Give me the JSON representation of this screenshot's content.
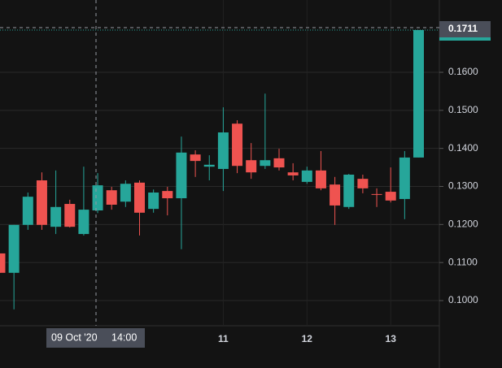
{
  "chart_data": {
    "type": "candlestick",
    "categories": [
      null,
      null,
      null,
      null,
      null,
      null,
      null,
      null,
      null,
      null,
      null,
      null,
      null,
      null,
      null,
      null,
      "11",
      null,
      null,
      null,
      null,
      null,
      "12",
      null,
      null,
      null,
      null,
      null,
      "13",
      null,
      null
    ],
    "open": [
      0.1124,
      0.1073,
      0.1199,
      0.1316,
      0.1194,
      0.1254,
      0.1175,
      0.1237,
      0.129,
      0.126,
      0.131,
      0.1241,
      0.1288,
      0.1269,
      0.1384,
      0.1352,
      0.1346,
      0.1465,
      0.1369,
      0.1354,
      0.1374,
      0.1337,
      0.1312,
      0.1342,
      0.1305,
      0.1246,
      0.132,
      0.128,
      0.1286,
      0.1267,
      0.1376
    ],
    "high": [
      0.1124,
      0.1199,
      0.1284,
      0.1337,
      0.1342,
      0.1265,
      0.1352,
      0.1335,
      0.1299,
      0.1316,
      0.1316,
      0.1292,
      0.1299,
      0.1431,
      0.1395,
      0.1382,
      0.1508,
      0.1474,
      0.1414,
      0.1544,
      0.1399,
      0.1361,
      0.1352,
      0.1393,
      0.1325,
      0.1333,
      0.1331,
      0.1295,
      0.135,
      0.1393,
      0.1711
    ],
    "low": [
      0.1073,
      0.0977,
      0.1186,
      0.1186,
      0.1175,
      0.1192,
      0.1171,
      0.123,
      0.1239,
      0.1246,
      0.1171,
      0.1231,
      0.1224,
      0.1135,
      0.1325,
      0.1316,
      0.1288,
      0.1335,
      0.132,
      0.1346,
      0.1342,
      0.1316,
      0.1307,
      0.129,
      0.1199,
      0.1241,
      0.1282,
      0.1246,
      0.1258,
      0.1214,
      0.1376
    ],
    "close": [
      0.1073,
      0.1199,
      0.1273,
      0.1199,
      0.1246,
      0.1194,
      0.1239,
      0.1303,
      0.1252,
      0.1307,
      0.1231,
      0.1284,
      0.1269,
      0.1389,
      0.1367,
      0.1357,
      0.1442,
      0.1354,
      0.1337,
      0.1369,
      0.135,
      0.1329,
      0.1342,
      0.1295,
      0.125,
      0.1331,
      0.1295,
      0.1278,
      0.1263,
      0.1376,
      0.1711
    ],
    "up_color": "#26a69a",
    "down_color": "#ef5350",
    "ylim": [
      0.0936,
      0.179
    ],
    "yticks": [
      {
        "value": 0.1,
        "label": "0.1000"
      },
      {
        "value": 0.11,
        "label": "0.1100"
      },
      {
        "value": 0.12,
        "label": "0.1200"
      },
      {
        "value": 0.13,
        "label": "0.1300"
      },
      {
        "value": 0.14,
        "label": "0.1400"
      },
      {
        "value": 0.15,
        "label": "0.1500"
      },
      {
        "value": 0.16,
        "label": "0.1600"
      }
    ],
    "grid": true,
    "last_price": {
      "value": 0.1711,
      "label": "0.1711"
    },
    "crosshair": {
      "date": "09 Oct '20",
      "time": "14:00"
    }
  }
}
